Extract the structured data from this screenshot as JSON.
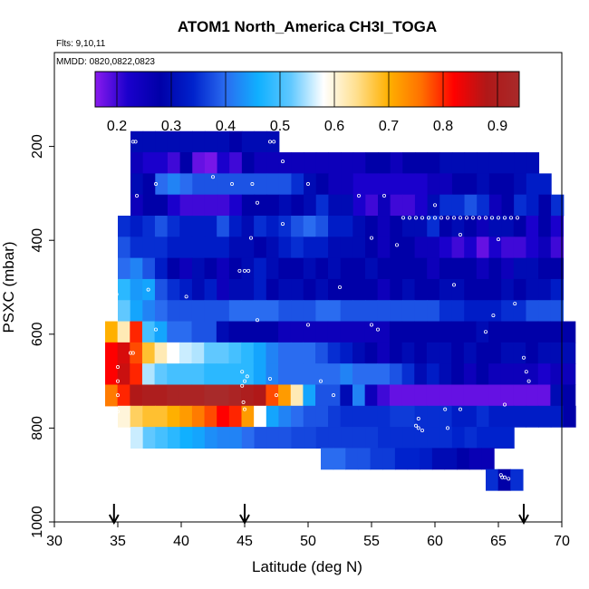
{
  "chart_data": {
    "type": "heatmap",
    "title": "ATOM1 North_America CH3I_TOGA",
    "notes": {
      "flights": "Flts: 9,10,11",
      "dates": "MMDD: 0820,0822,0823"
    },
    "xlabel": "Latitude (deg N)",
    "ylabel": "PSXC (mbar)",
    "xlim": [
      30,
      70
    ],
    "ylim": [
      1000,
      0
    ],
    "x_ticks": [
      "30",
      "35",
      "40",
      "45",
      "50",
      "55",
      "60",
      "65",
      "70"
    ],
    "y_ticks": [
      "200",
      "400",
      "600",
      "800",
      "1000"
    ],
    "colorbar": {
      "ticks": [
        "0.2",
        "0.3",
        "0.4",
        "0.5",
        "0.6",
        "0.7",
        "0.8",
        "0.9"
      ],
      "range": [
        0.16,
        0.94
      ],
      "stops": [
        "#8a1aee",
        "#1a00cc",
        "#0000a8",
        "#0022cc",
        "#2a6cf0",
        "#10b0ff",
        "#60c8ff",
        "#ffffff",
        "#ffe090",
        "#ffb000",
        "#ff7000",
        "#ff0000",
        "#b01818",
        "#a82a2a"
      ]
    },
    "flight_markers_lat": [
      34.7,
      45,
      67
    ],
    "grid": false,
    "rows": [
      {
        "p": 190,
        "lat0": 36,
        "cells": [
          0.3,
          0.3,
          0.3,
          0.3,
          0.3,
          0.3,
          0.3,
          0.3,
          0.28,
          0.3,
          0.3,
          0.3
        ]
      },
      {
        "p": 235,
        "lat0": 36,
        "cells": [
          0.25,
          0.22,
          0.22,
          0.2,
          0.28,
          0.18,
          0.17,
          0.22,
          0.2,
          0.28,
          0.25,
          0.25,
          0.25,
          0.25,
          0.25,
          0.25,
          0.25,
          0.25,
          0.25,
          0.28,
          0.28,
          0.25,
          0.28,
          0.28,
          0.28,
          0.3,
          0.3,
          0.3,
          0.3,
          0.3,
          0.3,
          0.3,
          0.3
        ]
      },
      {
        "p": 280,
        "lat0": 36,
        "cells": [
          0.3,
          0.28,
          0.4,
          0.42,
          0.4,
          0.38,
          0.38,
          0.38,
          0.38,
          0.38,
          0.38,
          0.38,
          0.38,
          0.35,
          0.3,
          0.28,
          0.25,
          0.25,
          0.22,
          0.22,
          0.22,
          0.22,
          0.22,
          0.22,
          0.25,
          0.25,
          0.28,
          0.28,
          0.3,
          0.28,
          0.28,
          0.3,
          0.33,
          0.33
        ]
      },
      {
        "p": 325,
        "lat0": 36,
        "cells": [
          0.25,
          0.28,
          0.28,
          0.22,
          0.2,
          0.2,
          0.2,
          0.2,
          0.22,
          0.28,
          0.28,
          0.28,
          0.3,
          0.28,
          0.3,
          0.35,
          0.3,
          0.3,
          0.22,
          0.2,
          0.25,
          0.2,
          0.2,
          0.22,
          0.3,
          0.35,
          0.35,
          0.38,
          0.35,
          0.25,
          0.28,
          0.35,
          0.33,
          0.28,
          0.35
        ]
      },
      {
        "p": 370,
        "lat0": 35,
        "cells": [
          0.35,
          0.33,
          0.35,
          0.38,
          0.35,
          0.33,
          0.33,
          0.33,
          0.38,
          0.33,
          0.3,
          0.35,
          0.33,
          0.35,
          0.38,
          0.4,
          0.38,
          0.33,
          0.33,
          0.3,
          0.28,
          0.25,
          0.28,
          0.3,
          0.3,
          0.35,
          0.28,
          0.3,
          0.28,
          0.25,
          0.3,
          0.3,
          0.28,
          0.22,
          0.28,
          0.22
        ]
      },
      {
        "p": 415,
        "lat0": 35,
        "cells": [
          0.38,
          0.35,
          0.35,
          0.35,
          0.33,
          0.33,
          0.33,
          0.33,
          0.33,
          0.3,
          0.3,
          0.28,
          0.3,
          0.33,
          0.35,
          0.33,
          0.33,
          0.3,
          0.3,
          0.3,
          0.28,
          0.25,
          0.28,
          0.28,
          0.25,
          0.25,
          0.22,
          0.2,
          0.22,
          0.18,
          0.22,
          0.2,
          0.2,
          0.22,
          0.25,
          0.2
        ]
      },
      {
        "p": 460,
        "lat0": 35,
        "cells": [
          0.4,
          0.42,
          0.38,
          0.33,
          0.28,
          0.25,
          0.3,
          0.28,
          0.25,
          0.28,
          0.3,
          0.33,
          0.3,
          0.28,
          0.28,
          0.3,
          0.28,
          0.3,
          0.28,
          0.28,
          0.3,
          0.28,
          0.28,
          0.28,
          0.28,
          0.25,
          0.28,
          0.28,
          0.28,
          0.25,
          0.28,
          0.25,
          0.3,
          0.3,
          0.28,
          0.28
        ]
      },
      {
        "p": 505,
        "lat0": 35,
        "cells": [
          0.48,
          0.44,
          0.45,
          0.38,
          0.35,
          0.33,
          0.3,
          0.33,
          0.25,
          0.3,
          0.3,
          0.33,
          0.28,
          0.3,
          0.3,
          0.28,
          0.3,
          0.28,
          0.28,
          0.28,
          0.28,
          0.25,
          0.28,
          0.3,
          0.28,
          0.28,
          0.3,
          0.3,
          0.28,
          0.28,
          0.28,
          0.3,
          0.28,
          0.3,
          0.3,
          0.33
        ]
      },
      {
        "p": 550,
        "lat0": 35,
        "cells": [
          0.52,
          0.45,
          0.42,
          0.4,
          0.38,
          0.38,
          0.38,
          0.38,
          0.38,
          0.4,
          0.4,
          0.4,
          0.4,
          0.38,
          0.38,
          0.38,
          0.4,
          0.4,
          0.38,
          0.38,
          0.38,
          0.38,
          0.38,
          0.38,
          0.38,
          0.38,
          0.35,
          0.35,
          0.33,
          0.33,
          0.33,
          0.35,
          0.35,
          0.38,
          0.38,
          0.38
        ]
      },
      {
        "p": 595,
        "lat0": 34,
        "cells": [
          0.7,
          0.62,
          0.8,
          0.5,
          0.45,
          0.4,
          0.4,
          0.38,
          0.38,
          0.3,
          0.28,
          0.28,
          0.28,
          0.28,
          0.25,
          0.25,
          0.25,
          0.25,
          0.25,
          0.25,
          0.25,
          0.25,
          0.25,
          0.28,
          0.28,
          0.28,
          0.28,
          0.28,
          0.28,
          0.28,
          0.3,
          0.28,
          0.28,
          0.28,
          0.28,
          0.28,
          0.28,
          0.28
        ]
      },
      {
        "p": 640,
        "lat0": 34,
        "cells": [
          0.82,
          0.85,
          0.78,
          0.68,
          0.62,
          0.58,
          0.56,
          0.55,
          0.52,
          0.52,
          0.5,
          0.48,
          0.45,
          0.42,
          0.4,
          0.4,
          0.4,
          0.38,
          0.35,
          0.33,
          0.3,
          0.28,
          0.25,
          0.28,
          0.3,
          0.28,
          0.3,
          0.3,
          0.28,
          0.3,
          0.28,
          0.28,
          0.3,
          0.3,
          0.28,
          0.3,
          0.3,
          0.3
        ]
      },
      {
        "p": 685,
        "lat0": 34,
        "cells": [
          0.82,
          0.86,
          0.8,
          0.55,
          0.52,
          0.5,
          0.5,
          0.5,
          0.48,
          0.48,
          0.48,
          0.48,
          0.45,
          0.42,
          0.4,
          0.4,
          0.4,
          0.4,
          0.4,
          0.42,
          0.4,
          0.4,
          0.4,
          0.38,
          0.35,
          0.3,
          0.33,
          0.3,
          0.28,
          0.25,
          0.28,
          0.25,
          0.25,
          0.25,
          0.25,
          0.22,
          0.25,
          0.25
        ]
      },
      {
        "p": 730,
        "lat0": 34,
        "cells": [
          0.75,
          0.8,
          0.88,
          0.9,
          0.9,
          0.92,
          0.92,
          0.92,
          0.94,
          0.94,
          0.92,
          0.9,
          0.88,
          0.78,
          0.72,
          0.62,
          0.45,
          0.38,
          0.38,
          0.3,
          0.42,
          0.25,
          0.2,
          0.18,
          0.18,
          0.18,
          0.18,
          0.18,
          0.18,
          0.18,
          0.18,
          0.18,
          0.18,
          0.18,
          0.18,
          0.18,
          0.3,
          0.28
        ]
      },
      {
        "p": 775,
        "lat0": 35,
        "cells": [
          0.6,
          0.66,
          0.68,
          0.68,
          0.7,
          0.72,
          0.75,
          0.78,
          0.82,
          0.8,
          0.72,
          0.58,
          0.45,
          0.42,
          0.4,
          0.38,
          0.38,
          0.36,
          0.35,
          0.35,
          0.35,
          0.35,
          0.36,
          0.36,
          0.35,
          0.35,
          0.35,
          0.33,
          0.33,
          0.35,
          0.33,
          0.33,
          0.33,
          0.33,
          0.33,
          0.33,
          0.28
        ]
      },
      {
        "p": 820,
        "lat0": 36,
        "cells": [
          0.56,
          0.52,
          0.5,
          0.48,
          0.46,
          0.45,
          0.43,
          0.42,
          0.42,
          0.4,
          0.38,
          0.38,
          0.38,
          0.37,
          0.37,
          0.36,
          0.36,
          0.36,
          0.36,
          0.36,
          0.35,
          0.35,
          0.35,
          0.35,
          0.35,
          0.35,
          0.34,
          0.35,
          0.34,
          0.34,
          0.34
        ]
      },
      {
        "p": 865,
        "lat0": 51,
        "cells": [
          0.4,
          0.4,
          0.38,
          0.38,
          0.36,
          0.36,
          0.34,
          0.34,
          0.33,
          0.3,
          0.3,
          0.28,
          0.26,
          0.26
        ]
      },
      {
        "p": 910,
        "lat0": 64,
        "cells": [
          0.35,
          0.28,
          0.35
        ]
      }
    ],
    "sample_points": [
      [
        36.2,
        190
      ],
      [
        36.4,
        190
      ],
      [
        47,
        190
      ],
      [
        47.3,
        190
      ],
      [
        48,
        232
      ],
      [
        42.5,
        265
      ],
      [
        45.6,
        280
      ],
      [
        38,
        280
      ],
      [
        50,
        280
      ],
      [
        44,
        280
      ],
      [
        36.5,
        305
      ],
      [
        46,
        320
      ],
      [
        54,
        305
      ],
      [
        56,
        305
      ],
      [
        60,
        325
      ],
      [
        57.5,
        352
      ],
      [
        58,
        352
      ],
      [
        58.5,
        352
      ],
      [
        59,
        352
      ],
      [
        59.5,
        352
      ],
      [
        60,
        352
      ],
      [
        60.5,
        352
      ],
      [
        61,
        352
      ],
      [
        61.5,
        352
      ],
      [
        62,
        352
      ],
      [
        62.5,
        352
      ],
      [
        63,
        352
      ],
      [
        63.5,
        352
      ],
      [
        64,
        352
      ],
      [
        64.5,
        352
      ],
      [
        65,
        352
      ],
      [
        65.5,
        352
      ],
      [
        66,
        352
      ],
      [
        66.5,
        352
      ],
      [
        62,
        388
      ],
      [
        65,
        398
      ],
      [
        45.5,
        395
      ],
      [
        48,
        365
      ],
      [
        55,
        395
      ],
      [
        57,
        410
      ],
      [
        34.9,
        515
      ],
      [
        37.4,
        505
      ],
      [
        44.6,
        465
      ],
      [
        45,
        465
      ],
      [
        45.3,
        465
      ],
      [
        40.4,
        520
      ],
      [
        52.5,
        500
      ],
      [
        61.5,
        495
      ],
      [
        66.3,
        535
      ],
      [
        46,
        570
      ],
      [
        50,
        580
      ],
      [
        55,
        580
      ],
      [
        38,
        590
      ],
      [
        36,
        640
      ],
      [
        36.2,
        640
      ],
      [
        35,
        670
      ],
      [
        35,
        700
      ],
      [
        35,
        730
      ],
      [
        35,
        765
      ],
      [
        44.8,
        710
      ],
      [
        45,
        700
      ],
      [
        45.2,
        690
      ],
      [
        44.8,
        680
      ],
      [
        44.9,
        745
      ],
      [
        45,
        760
      ],
      [
        47,
        695
      ],
      [
        51,
        700
      ],
      [
        52,
        730
      ],
      [
        61,
        800
      ],
      [
        62,
        760
      ],
      [
        58.5,
        795
      ],
      [
        58.7,
        800
      ],
      [
        59,
        805
      ],
      [
        65.5,
        750
      ],
      [
        64.6,
        560
      ],
      [
        67,
        650
      ],
      [
        67.2,
        680
      ],
      [
        67.4,
        700
      ],
      [
        65.5,
        850
      ],
      [
        65.2,
        900
      ],
      [
        65.3,
        905
      ],
      [
        65.5,
        905
      ],
      [
        65.8,
        908
      ],
      [
        60.8,
        760
      ],
      [
        58.7,
        780
      ],
      [
        47.5,
        730
      ],
      [
        55.5,
        590
      ],
      [
        64,
        595
      ]
    ]
  }
}
